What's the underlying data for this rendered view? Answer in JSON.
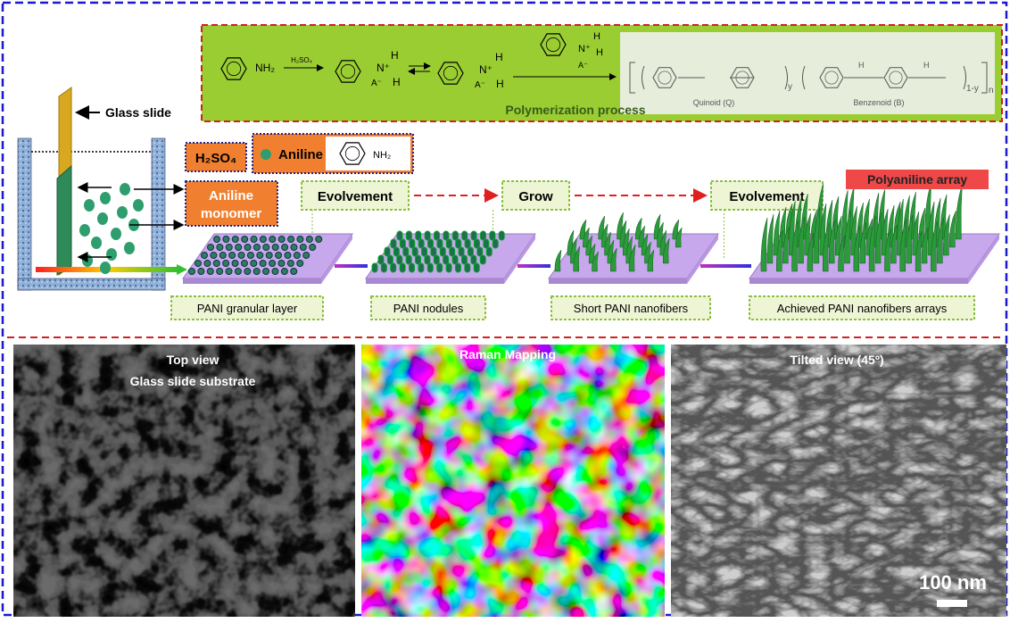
{
  "polymerization": {
    "amine": "NH₂",
    "reagent": "H₂SO₄",
    "hydrogen": "H",
    "cation": "N⁺",
    "anion": "A⁻",
    "y": "y",
    "one_minus_y": "1-y",
    "n": "n",
    "quinoid": "Quinoid (Q)",
    "benzenoid": "Benzenoid (B)",
    "title": "Polymerization process"
  },
  "setup": {
    "glass_slide": "Glass slide",
    "acid": "H₂SO₄",
    "aniline": "Aniline",
    "amine": "NH₂",
    "monomer": [
      "Aniline",
      "monomer"
    ]
  },
  "steps": {
    "arrows": [
      "Evolvement",
      "Grow",
      "Evolvement"
    ],
    "result": "Polyaniline array",
    "stages": [
      "PANI granular layer",
      "PANI nodules",
      "Short PANI nanofibers",
      "Achieved PANI nanofibers arrays"
    ]
  },
  "images": {
    "top_view": [
      "Top view",
      "Glass slide substrate"
    ],
    "raman": "Raman Mapping",
    "tilted": "Tilted view (45º)",
    "scale_bar": "100 nm"
  }
}
